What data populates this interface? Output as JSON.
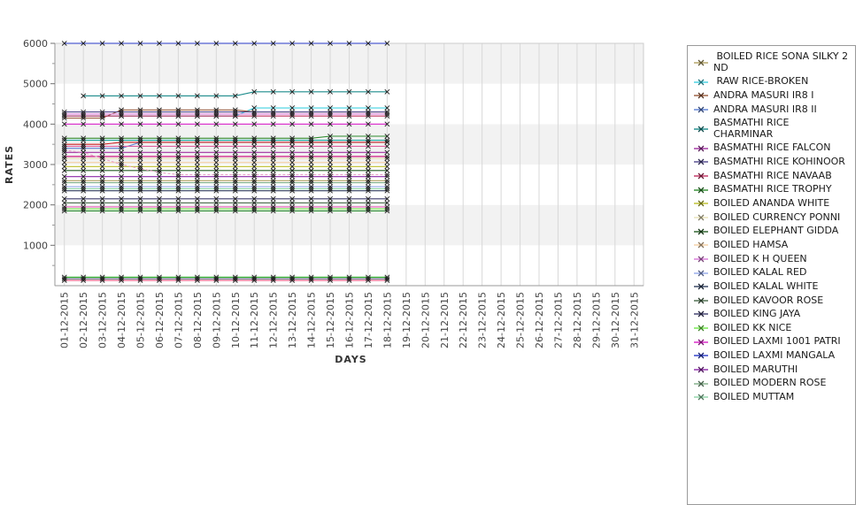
{
  "figure": {
    "title": "",
    "y_axis_label": "RATES",
    "x_axis_label": "DAYS",
    "y_tick_labels": [
      "1000",
      "2000",
      "3000",
      "4000",
      "5000",
      "6000"
    ],
    "band_color_odd": "#f2f2f2",
    "band_color_even": "#ffffff",
    "gridline_color": "#d8d8d8",
    "axis_line_color": "#9a9a9a",
    "marker_color": "#1a1a1a",
    "legend_border_color": "#9a9a9a"
  },
  "chart_data": {
    "type": "line",
    "title": "",
    "xlabel": "DAYS",
    "ylabel": "RATES",
    "ylim": [
      0,
      6000
    ],
    "grid": true,
    "legend_position": "right",
    "x": [
      "01-12-2015",
      "02-12-2015",
      "03-12-2015",
      "04-12-2015",
      "05-12-2015",
      "06-12-2015",
      "07-12-2015",
      "08-12-2015",
      "09-12-2015",
      "10-12-2015",
      "11-12-2015",
      "12-12-2015",
      "13-12-2015",
      "14-12-2015",
      "15-12-2015",
      "16-12-2015",
      "17-12-2015",
      "18-12-2015",
      "19-12-2015",
      "20-12-2015",
      "21-12-2015",
      "22-12-2015",
      "23-12-2015",
      "24-12-2015",
      "25-12-2015",
      "26-12-2015",
      "27-12-2015",
      "28-12-2015",
      "29-12-2015",
      "30-12-2015",
      "31-12-2015"
    ],
    "days_with_data": 18,
    "series": [
      {
        "name": " BOILED RICE SONA SILKY 2 ND",
        "color": "#b0a060",
        "values": [
          2600,
          2600,
          2600,
          2600,
          2600,
          2600,
          2600,
          2600,
          2600,
          2600,
          2600,
          2600,
          2600,
          2600,
          2600,
          2600,
          2600,
          2600
        ]
      },
      {
        "name": " RAW RICE-BROKEN",
        "color": "#40d0e0",
        "values": [
          4200,
          4200,
          4200,
          4200,
          4200,
          4200,
          4200,
          4200,
          4200,
          4200,
          4400,
          4400,
          4400,
          4400,
          4400,
          4400,
          4400,
          4400
        ]
      },
      {
        "name": "ANDRA MASURI IR8 I",
        "color": "#9a5a3a",
        "values": [
          4150,
          4150,
          4150,
          4350,
          4350,
          4350,
          4350,
          4350,
          4350,
          4350,
          4300,
          4300,
          4300,
          4300,
          4300,
          4300,
          4300,
          4300
        ]
      },
      {
        "name": "ANDRA MASURI IR8 II",
        "color": "#5b7fd4",
        "values": [
          3400,
          3400,
          3400,
          3400,
          3550,
          3550,
          3550,
          3550,
          3550,
          3550,
          3550,
          3550,
          3550,
          3550,
          3550,
          3550,
          3550,
          3550
        ]
      },
      {
        "name": "BASMATHI RICE CHARMINAR",
        "color": "#1d8c8c",
        "values": [
          null,
          4700,
          4700,
          4700,
          4700,
          4700,
          4700,
          4700,
          4700,
          4700,
          4800,
          4800,
          4800,
          4800,
          4800,
          4800,
          4800,
          4800
        ]
      },
      {
        "name": "BASMATHI RICE FALCON",
        "color": "#a030a0",
        "values": [
          3300,
          3300,
          3300,
          3300,
          3300,
          3300,
          3300,
          3300,
          3300,
          3300,
          3300,
          3300,
          3300,
          3300,
          3300,
          3300,
          3300,
          3300
        ]
      },
      {
        "name": "BASMATHI RICE KOHINOOR",
        "color": "#50488c",
        "values": [
          4300,
          4300,
          4300,
          4300,
          4300,
          4300,
          4300,
          4300,
          4300,
          4300,
          4300,
          4300,
          4300,
          4300,
          4300,
          4300,
          4300,
          4300
        ]
      },
      {
        "name": "BASMATHI RICE NAVAAB",
        "color": "#c03060",
        "values": [
          4200,
          4200,
          4200,
          4200,
          4200,
          4200,
          4200,
          4200,
          4200,
          4200,
          4200,
          4200,
          4200,
          4200,
          4200,
          4200,
          4200,
          4200
        ]
      },
      {
        "name": "BASMATHI RICE TROPHY",
        "color": "#2e8b2e",
        "values": [
          3650,
          3650,
          3650,
          3650,
          3650,
          3650,
          3650,
          3650,
          3650,
          3650,
          3650,
          3650,
          3650,
          3650,
          3700,
          3700,
          3700,
          3700
        ]
      },
      {
        "name": "BOILED ANANDA WHITE",
        "color": "#bcbe2a",
        "values": [
          2950,
          2950,
          2950,
          2950,
          2950,
          2950,
          2950,
          2950,
          2950,
          2950,
          2950,
          2950,
          2950,
          2950,
          2950,
          2950,
          2950,
          2950
        ]
      },
      {
        "name": "BOILED CURRENCY PONNI",
        "color": "#e8e2b8",
        "values": [
          3150,
          3150,
          3150,
          3150,
          3150,
          3150,
          3150,
          3150,
          3150,
          3150,
          3150,
          3150,
          3150,
          3150,
          3150,
          3150,
          3150,
          3150
        ]
      },
      {
        "name": "BOILED ELEPHANT GIDDA",
        "color": "#245c24",
        "values": [
          2850,
          2850,
          2850,
          2850,
          2850,
          2850,
          2850,
          2850,
          2850,
          2850,
          2850,
          2850,
          2850,
          2850,
          2850,
          2850,
          2850,
          2850
        ]
      },
      {
        "name": "BOILED HAMSA",
        "color": "#f4cfa4",
        "values": [
          3050,
          3050,
          3050,
          3050,
          3050,
          3050,
          3050,
          3050,
          3050,
          3050,
          3050,
          3050,
          3050,
          3050,
          3050,
          3050,
          3050,
          3050
        ]
      },
      {
        "name": "BOILED K H QUEEN",
        "color": "#d878d8",
        "values": [
          4250,
          4250,
          4250,
          4250,
          4250,
          4250,
          4250,
          4250,
          4250,
          4250,
          4250,
          4250,
          4250,
          4250,
          4250,
          4250,
          4250,
          4250
        ]
      },
      {
        "name": "BOILED KALAL RED",
        "color": "#93a8ea",
        "values": [
          2450,
          2450,
          2450,
          2450,
          2450,
          2450,
          2450,
          2450,
          2450,
          2450,
          2450,
          2450,
          2450,
          2450,
          2450,
          2450,
          2450,
          2450
        ]
      },
      {
        "name": "BOILED KALAL WHITE",
        "color": "#2e3d5c",
        "values": [
          2350,
          2350,
          2350,
          2350,
          2350,
          2350,
          2350,
          2350,
          2350,
          2350,
          2350,
          2350,
          2350,
          2350,
          2350,
          2350,
          2350,
          2350
        ]
      },
      {
        "name": "BOILED KAVOOR ROSE",
        "color": "#48684a",
        "values": [
          2050,
          2050,
          2050,
          2050,
          2050,
          2050,
          2050,
          2050,
          2050,
          2050,
          2050,
          2050,
          2050,
          2050,
          2050,
          2050,
          2050,
          2050
        ]
      },
      {
        "name": "BOILED KING JAYA",
        "color": "#3c3a6a",
        "values": [
          2150,
          2150,
          2150,
          2150,
          2150,
          2150,
          2150,
          2150,
          2150,
          2150,
          2150,
          2150,
          2150,
          2150,
          2150,
          2150,
          2150,
          2150
        ]
      },
      {
        "name": "BOILED KK NICE",
        "color": "#70e848",
        "values": [
          1900,
          1900,
          1900,
          1900,
          1900,
          1900,
          1900,
          1900,
          1900,
          1900,
          1900,
          1900,
          1900,
          1900,
          1900,
          1900,
          1900,
          1900
        ]
      },
      {
        "name": "BOILED LAXMI 1001 PATRI",
        "color": "#d820c8",
        "values": [
          4000,
          4000,
          4000,
          4000,
          4000,
          4000,
          4000,
          4000,
          4000,
          4000,
          4000,
          4000,
          4000,
          4000,
          4000,
          4000,
          4000,
          4000
        ]
      },
      {
        "name": "BOILED LAXMI MANGALA",
        "color": "#2738c8",
        "values": [
          6000,
          6000,
          6000,
          6000,
          6000,
          6000,
          6000,
          6000,
          6000,
          6000,
          6000,
          6000,
          6000,
          6000,
          6000,
          6000,
          6000,
          6000
        ]
      },
      {
        "name": "BOILED MARUTHI",
        "color": "#8c28a8",
        "values": [
          2700,
          2700,
          2700,
          2700,
          2700,
          2700,
          2700,
          2700,
          2700,
          2700,
          2700,
          2700,
          2700,
          2700,
          2700,
          2700,
          2700,
          2700
        ]
      },
      {
        "name": "BOILED MODERN ROSE",
        "color": "#7fae87",
        "values": [
          2550,
          2550,
          2550,
          2550,
          2550,
          2550,
          2550,
          2550,
          2550,
          2550,
          2550,
          2550,
          2550,
          2550,
          2550,
          2550,
          2550,
          2550
        ]
      },
      {
        "name": "BOILED MUTTAM",
        "color": "#8fd4a8",
        "values": [
          2400,
          2400,
          2400,
          2400,
          2400,
          2400,
          2400,
          2400,
          2400,
          2400,
          2400,
          2400,
          2400,
          2400,
          2400,
          2400,
          2400,
          2400
        ]
      },
      {
        "name": "",
        "color": "#cc2222",
        "values": [
          3500,
          3500,
          3500,
          3550,
          3550,
          3550,
          3550,
          3550,
          3550,
          3550,
          3550,
          3550,
          3550,
          3550,
          3550,
          3550,
          3550,
          3550
        ]
      },
      {
        "name": "",
        "color": "#1ba8a0",
        "values": [
          3600,
          3600,
          3600,
          3600,
          3600,
          3600,
          3600,
          3600,
          3600,
          3600,
          3600,
          3600,
          3600,
          3600,
          3600,
          3600,
          3600,
          3600
        ]
      },
      {
        "name": "",
        "color": "#cc0077",
        "values": [
          3200,
          3200,
          3200,
          3200,
          3200,
          3200,
          3200,
          3200,
          3200,
          3200,
          3200,
          3200,
          3200,
          3200,
          3200,
          3200,
          3200,
          3200
        ]
      },
      {
        "name": "",
        "color": "#e060a0",
        "values": [
          3450,
          3450,
          3450,
          3450,
          3450,
          3450,
          3450,
          3450,
          3450,
          3450,
          3450,
          3450,
          3450,
          3450,
          3450,
          3450,
          3450,
          3450
        ]
      },
      {
        "name": "",
        "color": "#e8a0c8",
        "dash": true,
        "values": [
          3350,
          3300,
          3150,
          3000,
          2900,
          2800,
          2750,
          2750,
          2750,
          2750,
          2750,
          2750,
          2750,
          2750,
          2750,
          2750,
          2750,
          2750
        ]
      },
      {
        "name": "",
        "color": "#e858b8",
        "values": [
          1950,
          1950,
          1950,
          1950,
          1950,
          1950,
          1950,
          1950,
          1950,
          1950,
          1950,
          1950,
          1950,
          1950,
          1950,
          1950,
          1950,
          1950
        ]
      },
      {
        "name": "",
        "color": "#18861f",
        "values": [
          1850,
          1850,
          1850,
          1850,
          1850,
          1850,
          1850,
          1850,
          1850,
          1850,
          1850,
          1850,
          1850,
          1850,
          1850,
          1850,
          1850,
          1850
        ]
      },
      {
        "name": "",
        "color": "#22aa22",
        "values": [
          210,
          210,
          210,
          210,
          210,
          210,
          210,
          210,
          210,
          210,
          210,
          210,
          210,
          210,
          210,
          210,
          210,
          210
        ]
      },
      {
        "name": "",
        "color": "#505a70",
        "values": [
          170,
          170,
          170,
          170,
          170,
          170,
          170,
          170,
          170,
          170,
          170,
          170,
          170,
          170,
          170,
          170,
          170,
          170
        ]
      },
      {
        "name": "",
        "color": "#e75480",
        "values": [
          130,
          130,
          130,
          130,
          130,
          130,
          130,
          130,
          130,
          130,
          130,
          130,
          130,
          130,
          130,
          130,
          130,
          130
        ]
      }
    ]
  }
}
